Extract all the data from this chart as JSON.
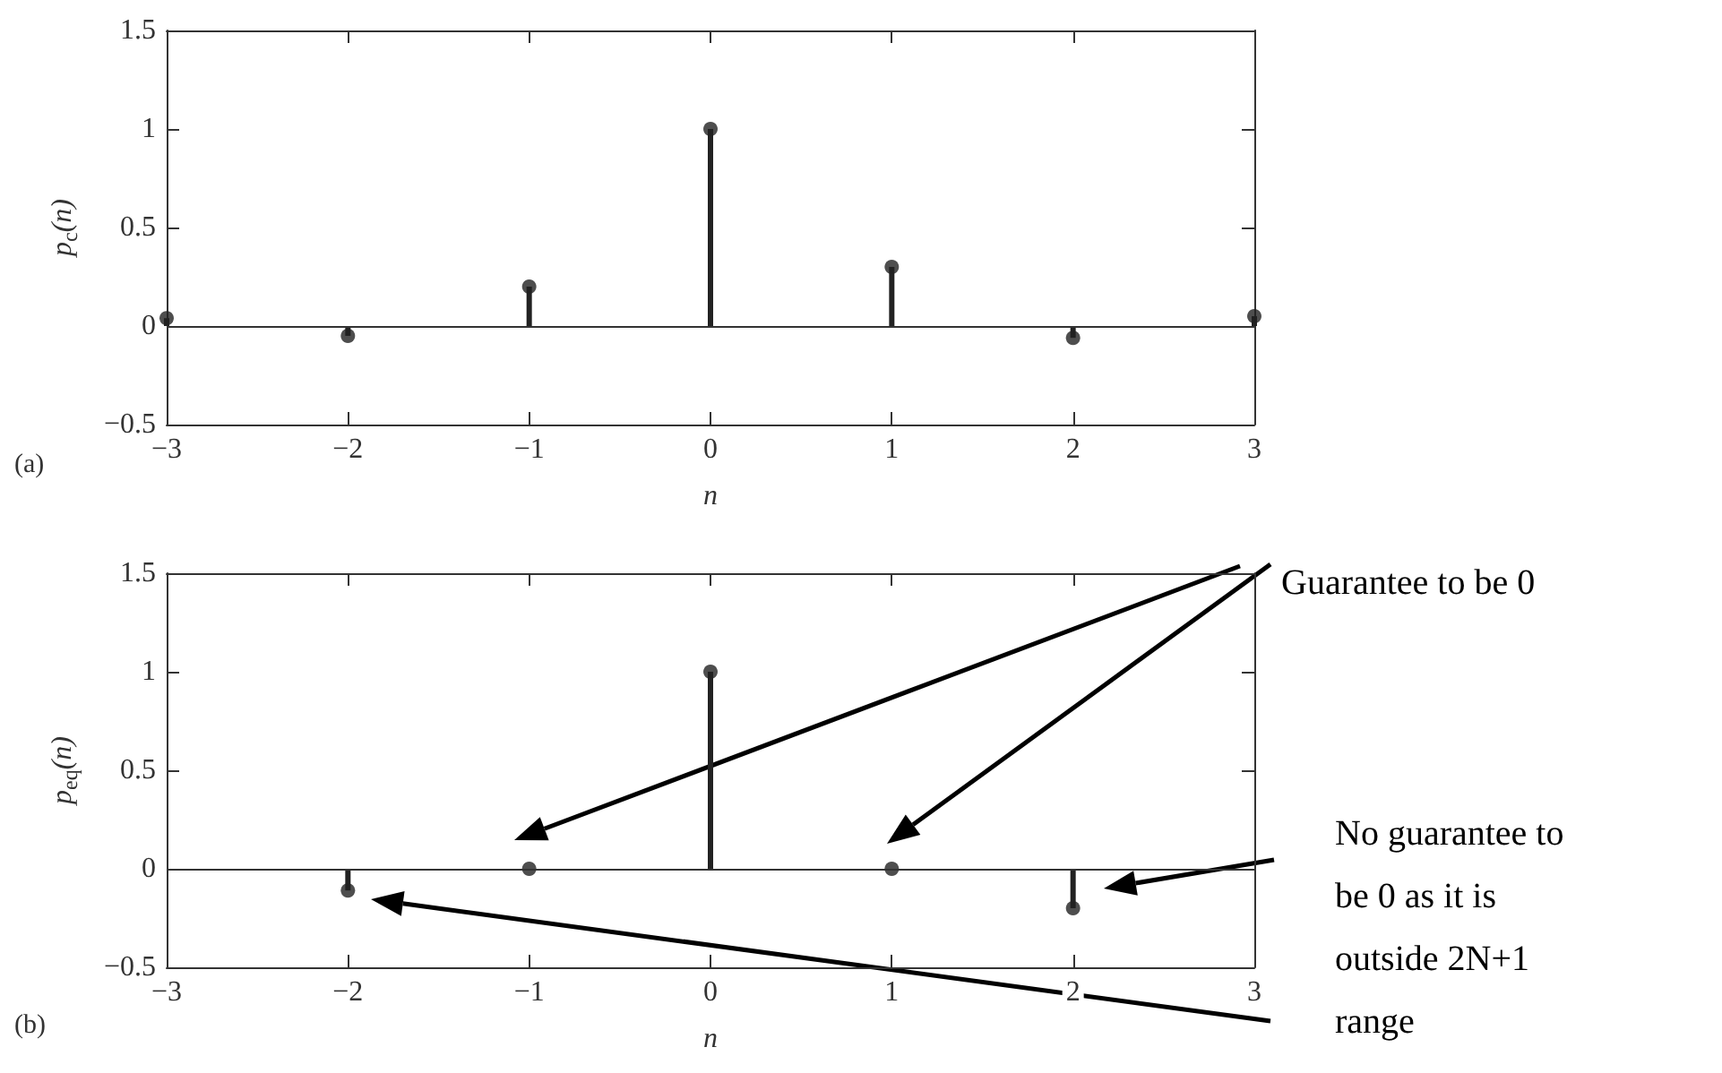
{
  "chart_data": [
    {
      "type": "lollipop",
      "x": [
        -3,
        -2,
        -1,
        0,
        1,
        2,
        3
      ],
      "values": [
        0.04,
        -0.05,
        0.2,
        1,
        0.3,
        -0.06,
        0.05
      ],
      "color": "#222222",
      "xlabel": "n",
      "ylabel": "p$_{c}$(n)",
      "xlim": [
        -3,
        3
      ],
      "xticks": [
        -3,
        -2,
        -1,
        0,
        1,
        2,
        3
      ],
      "ylim": [
        -0.5,
        1.5
      ],
      "yticks": [
        -0.5,
        0,
        0.5,
        1,
        1.5
      ],
      "grid": false,
      "marker": "circle",
      "ref_lines": [
        {
          "axis": "y",
          "value": 0
        }
      ],
      "annotations": [
        "(a)"
      ]
    },
    {
      "type": "lollipop",
      "x": [
        -2,
        -1,
        0,
        1,
        2
      ],
      "values": [
        -0.11,
        0,
        1,
        0,
        -0.2
      ],
      "color": "#222222",
      "xlabel": "n",
      "ylabel": "p$_{eq}$(n)",
      "xlim": [
        -3,
        3
      ],
      "xticks": [
        -3,
        -2,
        -1,
        0,
        1,
        2,
        3
      ],
      "ylim": [
        -0.5,
        1.5
      ],
      "yticks": [
        -0.5,
        0,
        0.5,
        1,
        1.5
      ],
      "grid": false,
      "marker": "circle",
      "ref_lines": [
        {
          "axis": "y",
          "value": 0
        }
      ],
      "annotations": [
        "(b)",
        "Guarantee to be 0",
        "No guarantee to be 0 as it is outside 2N+1 range"
      ]
    }
  ]
}
